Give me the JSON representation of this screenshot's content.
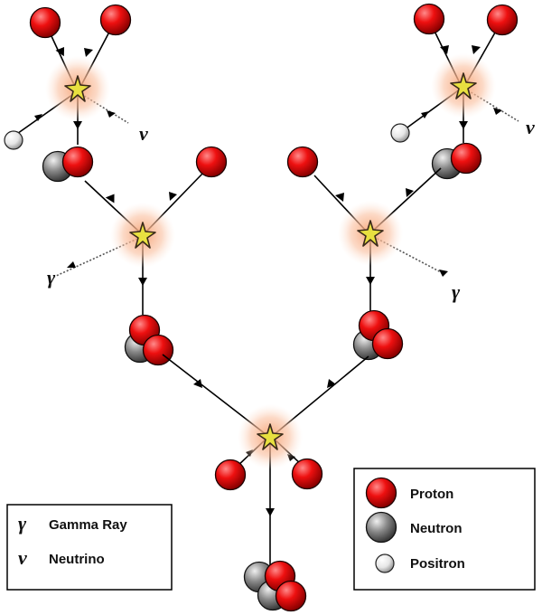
{
  "symbols": {
    "gamma": "γ",
    "neutrino": "ν"
  },
  "legend_left": {
    "items": [
      {
        "symbol": "γ",
        "label": "Gamma Ray"
      },
      {
        "symbol": "ν",
        "label": "Neutrino"
      }
    ]
  },
  "legend_right": {
    "items": [
      {
        "particle": "proton",
        "label": "Proton"
      },
      {
        "particle": "neutron",
        "label": "Neutron"
      },
      {
        "particle": "positron",
        "label": "Positron"
      }
    ]
  },
  "colors": {
    "proton": "#e00000",
    "neutron": "#7a7a7a",
    "positron": "#f2f2f2",
    "arrow": "#000000",
    "star": "#e8e040",
    "glow": "#f8b088"
  }
}
